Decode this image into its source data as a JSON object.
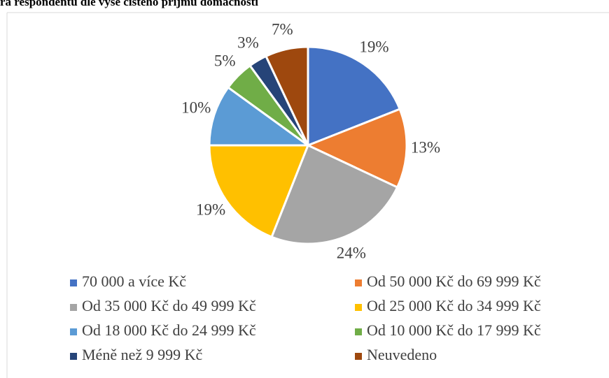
{
  "chart_data": {
    "type": "pie",
    "title": "ra respondentů dle výše čistého příjmu domácnosti",
    "categories": [
      "70 000 a více Kč",
      "Od 50 000 Kč do 69 999 Kč",
      "Od 35 000 Kč do 49 999 Kč",
      "Od 25 000 Kč do 34 999 Kč",
      "Od 18 000 Kč do 24 999 Kč",
      "Od 10 000 Kč do 17 999 Kč",
      "Méně než 9 999 Kč",
      "Neuvedeno"
    ],
    "values": [
      19,
      13,
      24,
      19,
      10,
      5,
      3,
      7
    ],
    "value_labels": [
      "19%",
      "13%",
      "24%",
      "19%",
      "10%",
      "5%",
      "3%",
      "7%"
    ],
    "colors": [
      "#4472c4",
      "#ed7d31",
      "#a5a5a5",
      "#ffc000",
      "#5b9bd5",
      "#70ad47",
      "#264478",
      "#9e480e"
    ],
    "legend": "bottom"
  }
}
